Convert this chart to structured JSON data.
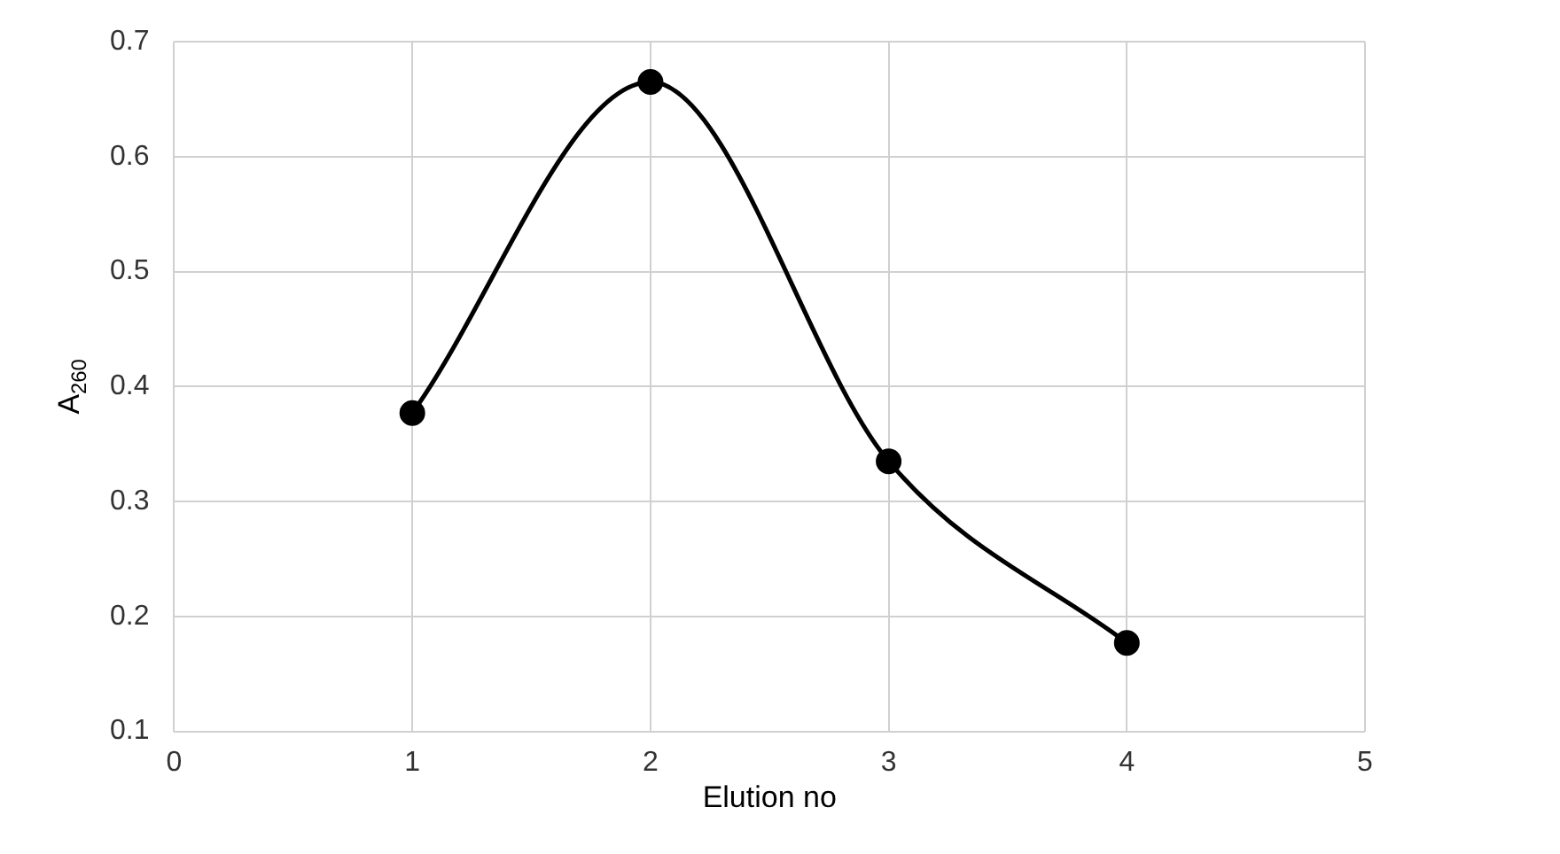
{
  "chart_data": {
    "type": "line",
    "xlabel": "Elution no",
    "ylabel": "A$_{260}$",
    "x": [
      1,
      2,
      3,
      4
    ],
    "series": [
      {
        "color": "#000000",
        "values": [
          0.377,
          0.665,
          0.335,
          0.177
        ]
      }
    ],
    "xlim": [
      0,
      5
    ],
    "xticks": [
      0,
      1,
      2,
      3,
      4,
      5
    ],
    "ylim": [
      0.1,
      0.7
    ],
    "yticks": [
      0.1,
      0.2,
      0.3,
      0.4,
      0.5,
      0.6,
      0.7
    ],
    "grid": true,
    "legend": false,
    "marker": "circle",
    "line_style": "solid"
  }
}
